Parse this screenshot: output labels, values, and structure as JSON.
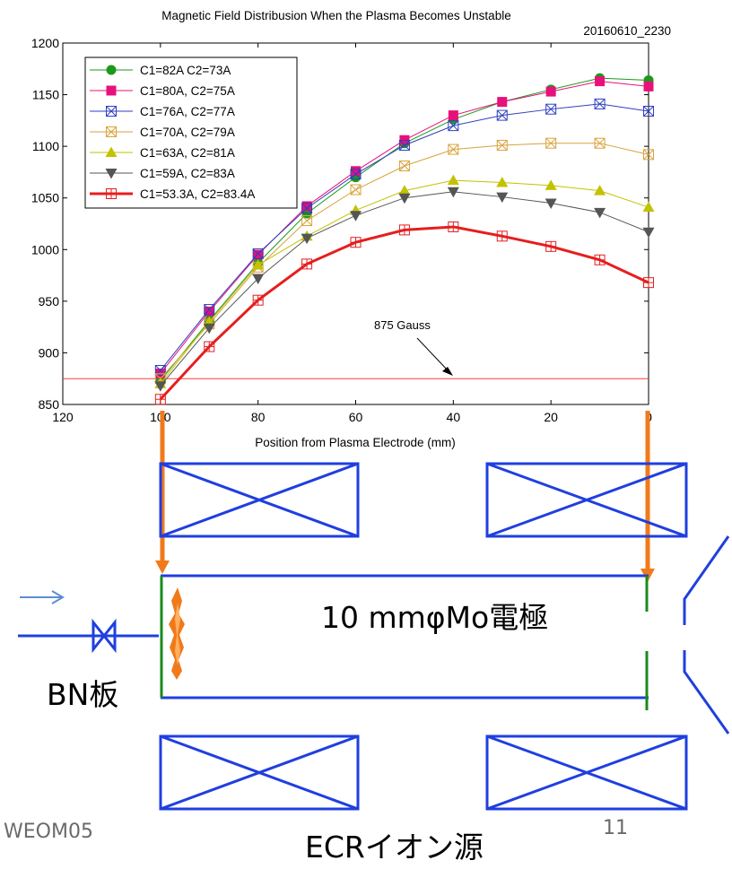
{
  "chart_data": {
    "type": "line",
    "title": "Magnetic Field Distribusion When the Plasma Becomes Unstable",
    "subtitle": "20160610_2230",
    "xlabel": "Position from Plasma Electrode (mm)",
    "ylabel": "",
    "xlim": [
      120,
      0
    ],
    "ylim": [
      850,
      1200
    ],
    "x_reversed": true,
    "xticks": [
      120,
      100,
      80,
      60,
      40,
      20,
      0
    ],
    "yticks": [
      850,
      900,
      950,
      1000,
      1050,
      1100,
      1150,
      1200
    ],
    "grid": false,
    "legend_position": "top-left",
    "x": [
      100,
      90,
      80,
      70,
      60,
      50,
      40,
      30,
      20,
      10,
      0
    ],
    "series": [
      {
        "name": "C1=82A C2=73A",
        "color": "#1a9a1a",
        "marker": "circle-filled",
        "lineWidth": 1,
        "values": [
          873,
          931,
          987,
          1035,
          1070,
          1103,
          1126,
          1143,
          1155,
          1166,
          1164
        ]
      },
      {
        "name": "C1=80A, C2=75A",
        "color": "#e8107a",
        "marker": "square-filled",
        "lineWidth": 1,
        "values": [
          880,
          940,
          995,
          1042,
          1076,
          1106,
          1130,
          1143,
          1153,
          1163,
          1158
        ]
      },
      {
        "name": "C1=76A, C2=77A",
        "color": "#2f3fbf",
        "marker": "square-x",
        "lineWidth": 1,
        "values": [
          883,
          942,
          996,
          1040,
          1073,
          1101,
          1120,
          1130,
          1136,
          1141,
          1134
        ]
      },
      {
        "name": "C1=70A, C2=79A",
        "color": "#d9a23a",
        "marker": "square-x",
        "lineWidth": 1,
        "values": [
          875,
          928,
          983,
          1028,
          1058,
          1081,
          1097,
          1101,
          1103,
          1103,
          1092
        ]
      },
      {
        "name": "C1=63A, C2=81A",
        "color": "#c2c200",
        "marker": "triangle-up",
        "lineWidth": 1,
        "values": [
          870,
          930,
          985,
          1013,
          1038,
          1057,
          1067,
          1065,
          1062,
          1057,
          1041
        ]
      },
      {
        "name": "C1=59A, C2=83A",
        "color": "#555555",
        "marker": "triangle-down",
        "lineWidth": 1,
        "values": [
          868,
          924,
          972,
          1011,
          1033,
          1050,
          1056,
          1051,
          1045,
          1036,
          1017
        ]
      },
      {
        "name": "C1=53.3A, C2=83.4A",
        "color": "#e61e1e",
        "marker": "square-plus",
        "lineWidth": 3,
        "values": [
          855,
          906,
          951,
          986,
          1007,
          1019,
          1022,
          1013,
          1003,
          990,
          968
        ]
      }
    ],
    "reference_line": {
      "value": 875,
      "color": "#ff3a3a"
    },
    "annotation": "875 Gauss"
  },
  "diagram": {
    "label_electrode": "10 mmφMo電極",
    "label_bn": "BN板",
    "label_source": "ECRイオン源",
    "footer_left": "WEOM05",
    "page_number": "11",
    "colors": {
      "coil": "#1f3fe0",
      "plate": "#1a8a1a",
      "arrow": "#f07a1a",
      "flow_arrow": "#5b8fd0"
    }
  }
}
